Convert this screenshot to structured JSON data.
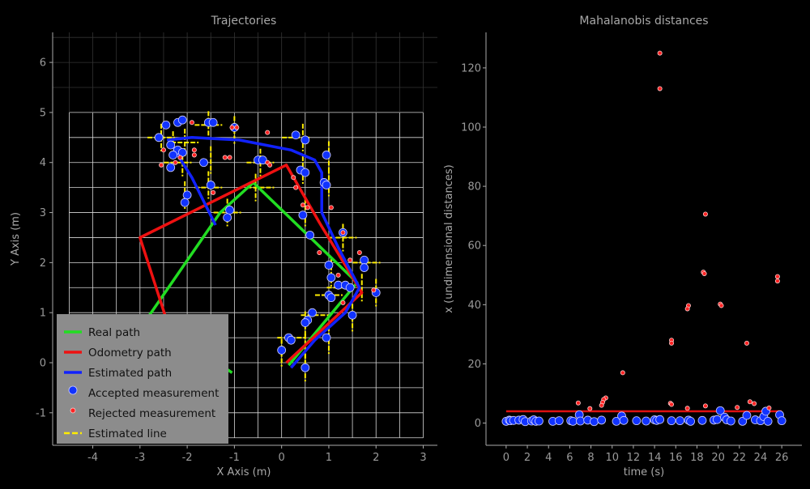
{
  "chart_data": [
    {
      "type": "line",
      "title": "Trajectories",
      "xlabel": "X Axis (m)",
      "ylabel": "Y Axis (m)",
      "xlim": [
        -4.85,
        3.3
      ],
      "ylim": [
        -1.65,
        6.6
      ],
      "xticks": [
        "-4",
        "-3",
        "-2",
        "-1",
        "0",
        "1",
        "2",
        "3"
      ],
      "yticks": [
        "-1",
        "0",
        "1",
        "2",
        "3",
        "4",
        "5",
        "6"
      ],
      "grid": {
        "x_range": [
          -4.5,
          3.0
        ],
        "y_range": [
          -1.5,
          5.0
        ],
        "step": 0.5
      },
      "legend_position": "bottom-left",
      "colors": {
        "real": "#22dd22",
        "odometry": "#ee1111",
        "estimated": "#1122ff",
        "accepted": "#1133ff",
        "rejected": "#ff2222",
        "line": "#ffee00"
      },
      "legend": [
        "Real path",
        "Odometry path",
        "Estimated path",
        "Accepted measurement",
        "Rejected measurement",
        "Estimated line"
      ],
      "series": [
        {
          "name": "Real path",
          "points": [
            [
              -1.05,
              -0.2
            ],
            [
              -2.8,
              0.95
            ],
            [
              -1.3,
              3.0
            ],
            [
              -0.6,
              3.6
            ],
            [
              1.6,
              1.6
            ],
            [
              0.15,
              -0.05
            ]
          ]
        },
        {
          "name": "Odometry path",
          "points": [
            [
              -2.35,
              0.6
            ],
            [
              -3.0,
              2.5
            ],
            [
              0.1,
              3.95
            ],
            [
              0.8,
              2.8
            ],
            [
              1.7,
              1.4
            ],
            [
              0.1,
              0.0
            ]
          ]
        },
        {
          "name": "Estimated path",
          "points": [
            [
              -1.4,
              2.75
            ],
            [
              -1.9,
              3.7
            ],
            [
              -2.4,
              4.45
            ],
            [
              -1.9,
              4.5
            ],
            [
              -0.9,
              4.45
            ],
            [
              0.2,
              4.25
            ],
            [
              0.7,
              4.05
            ],
            [
              0.85,
              3.8
            ],
            [
              0.85,
              3.0
            ],
            [
              1.2,
              2.3
            ],
            [
              1.65,
              1.5
            ],
            [
              1.35,
              1.0
            ],
            [
              0.7,
              0.45
            ],
            [
              0.2,
              -0.1
            ]
          ]
        }
      ],
      "accepted_measurements": [
        [
          -2.6,
          4.5
        ],
        [
          -2.45,
          4.75
        ],
        [
          -2.2,
          4.8
        ],
        [
          -2.1,
          4.85
        ],
        [
          -1.55,
          4.8
        ],
        [
          -1.45,
          4.8
        ],
        [
          -1.0,
          4.7
        ],
        [
          -2.35,
          4.35
        ],
        [
          -2.2,
          4.25
        ],
        [
          -2.1,
          4.2
        ],
        [
          -2.3,
          4.15
        ],
        [
          -1.65,
          4.0
        ],
        [
          -2.35,
          3.9
        ],
        [
          -0.5,
          4.05
        ],
        [
          -0.4,
          4.05
        ],
        [
          0.3,
          4.55
        ],
        [
          0.5,
          4.45
        ],
        [
          0.95,
          4.15
        ],
        [
          0.4,
          3.85
        ],
        [
          0.5,
          3.8
        ],
        [
          0.9,
          3.6
        ],
        [
          0.95,
          3.55
        ],
        [
          -2.0,
          3.35
        ],
        [
          -2.05,
          3.2
        ],
        [
          -1.5,
          3.55
        ],
        [
          -1.1,
          3.05
        ],
        [
          -1.15,
          2.9
        ],
        [
          0.45,
          2.95
        ],
        [
          0.6,
          2.55
        ],
        [
          1.3,
          2.6
        ],
        [
          1.0,
          1.95
        ],
        [
          1.05,
          1.7
        ],
        [
          1.75,
          2.05
        ],
        [
          1.75,
          1.9
        ],
        [
          1.2,
          1.55
        ],
        [
          1.35,
          1.55
        ],
        [
          1.45,
          1.5
        ],
        [
          2.0,
          1.4
        ],
        [
          1.0,
          1.35
        ],
        [
          1.05,
          1.3
        ],
        [
          0.65,
          1.0
        ],
        [
          0.55,
          0.85
        ],
        [
          1.5,
          0.95
        ],
        [
          0.5,
          0.8
        ],
        [
          0.15,
          0.5
        ],
        [
          0.2,
          0.45
        ],
        [
          0.95,
          0.5
        ],
        [
          0.0,
          0.25
        ],
        [
          0.5,
          -0.1
        ]
      ],
      "rejected_measurements": [
        [
          -1.9,
          4.8
        ],
        [
          -1.05,
          4.7
        ],
        [
          -0.95,
          4.7
        ],
        [
          -0.3,
          4.6
        ],
        [
          -2.5,
          4.25
        ],
        [
          -1.85,
          4.25
        ],
        [
          -1.85,
          4.15
        ],
        [
          -2.15,
          4.1
        ],
        [
          -2.25,
          4.0
        ],
        [
          -1.2,
          4.1
        ],
        [
          -1.1,
          4.1
        ],
        [
          -0.3,
          4.0
        ],
        [
          -0.25,
          3.95
        ],
        [
          -2.55,
          3.95
        ],
        [
          -1.45,
          3.4
        ],
        [
          0.25,
          3.7
        ],
        [
          0.3,
          3.5
        ],
        [
          0.45,
          3.15
        ],
        [
          0.55,
          3.1
        ],
        [
          1.05,
          3.1
        ],
        [
          1.3,
          2.6
        ],
        [
          1.65,
          2.2
        ],
        [
          0.8,
          2.2
        ],
        [
          1.45,
          2.05
        ],
        [
          1.95,
          1.45
        ],
        [
          1.2,
          1.75
        ],
        [
          1.3,
          1.2
        ]
      ],
      "estimated_lines": [
        {
          "c": [
            -2.55,
            4.5
          ],
          "d": "h"
        },
        {
          "c": [
            -2.55,
            4.5
          ],
          "d": "v"
        },
        {
          "c": [
            -2.3,
            4.35
          ],
          "d": "v"
        },
        {
          "c": [
            -2.05,
            4.4
          ],
          "d": "h"
        },
        {
          "c": [
            -2.05,
            4.4
          ],
          "d": "v"
        },
        {
          "c": [
            -1.55,
            4.75
          ],
          "d": "v"
        },
        {
          "c": [
            -1.55,
            4.75
          ],
          "d": "h"
        },
        {
          "c": [
            -1.0,
            4.65
          ],
          "d": "v"
        },
        {
          "c": [
            -2.2,
            4.0
          ],
          "d": "h"
        },
        {
          "c": [
            -2.1,
            4.0
          ],
          "d": "v"
        },
        {
          "c": [
            -1.5,
            4.05
          ],
          "d": "v"
        },
        {
          "c": [
            -0.45,
            4.0
          ],
          "d": "h"
        },
        {
          "c": [
            -0.45,
            4.0
          ],
          "d": "v"
        },
        {
          "c": [
            0.3,
            4.5
          ],
          "d": "h"
        },
        {
          "c": [
            0.45,
            4.5
          ],
          "d": "v"
        },
        {
          "c": [
            0.45,
            3.85
          ],
          "d": "v"
        },
        {
          "c": [
            1.0,
            4.15
          ],
          "d": "v"
        },
        {
          "c": [
            1.0,
            3.6
          ],
          "d": "v"
        },
        {
          "c": [
            -2.05,
            3.35
          ],
          "d": "v"
        },
        {
          "c": [
            -1.55,
            3.5
          ],
          "d": "h"
        },
        {
          "c": [
            -1.55,
            3.55
          ],
          "d": "v"
        },
        {
          "c": [
            -0.55,
            3.5
          ],
          "d": "v"
        },
        {
          "c": [
            -0.45,
            3.5
          ],
          "d": "h"
        },
        {
          "c": [
            -1.15,
            3.0
          ],
          "d": "h"
        },
        {
          "c": [
            -1.15,
            3.0
          ],
          "d": "v"
        },
        {
          "c": [
            0.5,
            3.0
          ],
          "d": "v"
        },
        {
          "c": [
            1.3,
            2.5
          ],
          "d": "h"
        },
        {
          "c": [
            1.3,
            2.5
          ],
          "d": "v"
        },
        {
          "c": [
            1.8,
            2.0
          ],
          "d": "h"
        },
        {
          "c": [
            1.05,
            1.8
          ],
          "d": "v"
        },
        {
          "c": [
            1.25,
            1.5
          ],
          "d": "h"
        },
        {
          "c": [
            1.7,
            1.5
          ],
          "d": "v"
        },
        {
          "c": [
            2.0,
            1.4
          ],
          "d": "v"
        },
        {
          "c": [
            1.0,
            1.35
          ],
          "d": "h"
        },
        {
          "c": [
            1.5,
            0.9
          ],
          "d": "v"
        },
        {
          "c": [
            0.7,
            0.95
          ],
          "d": "h"
        },
        {
          "c": [
            0.5,
            0.75
          ],
          "d": "v"
        },
        {
          "c": [
            0.2,
            0.5
          ],
          "d": "h"
        },
        {
          "c": [
            1.0,
            0.45
          ],
          "d": "v"
        },
        {
          "c": [
            0.0,
            0.2
          ],
          "d": "v"
        },
        {
          "c": [
            0.5,
            -0.1
          ],
          "d": "v"
        },
        {
          "c": [
            0.5,
            0.3
          ],
          "d": "v"
        }
      ]
    },
    {
      "type": "scatter",
      "title": "Mahalanobis distances",
      "xlabel": "time (s)",
      "ylabel": "x (undimensional distances)",
      "xlim": [
        -1.9,
        27.9
      ],
      "ylim": [
        -7.5,
        132
      ],
      "xticks": [
        "0",
        "2",
        "4",
        "6",
        "8",
        "10",
        "12",
        "14",
        "16",
        "18",
        "20",
        "22",
        "24",
        "26"
      ],
      "yticks": [
        "0",
        "20",
        "40",
        "60",
        "80",
        "100",
        "120"
      ],
      "threshold": 4,
      "threshold_range": [
        0,
        26
      ],
      "accepted_points": [
        [
          0,
          0.6
        ],
        [
          0.3,
          1.0
        ],
        [
          0.4,
          0.8
        ],
        [
          0.7,
          0.9
        ],
        [
          1.2,
          1.0
        ],
        [
          1.6,
          1.2
        ],
        [
          1.8,
          0.5
        ],
        [
          2.4,
          0.7
        ],
        [
          2.6,
          1.1
        ],
        [
          2.8,
          0.6
        ],
        [
          3.1,
          0.7
        ],
        [
          4.4,
          0.6
        ],
        [
          5.0,
          0.8
        ],
        [
          6.1,
          0.8
        ],
        [
          6.3,
          0.6
        ],
        [
          6.9,
          2.8
        ],
        [
          7.0,
          0.7
        ],
        [
          7.7,
          1.0
        ],
        [
          8.3,
          0.5
        ],
        [
          9.0,
          1.0
        ],
        [
          10.4,
          0.6
        ],
        [
          10.9,
          2.4
        ],
        [
          11.1,
          0.9
        ],
        [
          12.3,
          0.8
        ],
        [
          13.2,
          0.7
        ],
        [
          14.0,
          1.1
        ],
        [
          14.2,
          0.9
        ],
        [
          14.5,
          1.2
        ],
        [
          15.6,
          0.8
        ],
        [
          16.4,
          0.8
        ],
        [
          17.2,
          1.0
        ],
        [
          17.4,
          0.6
        ],
        [
          18.5,
          0.9
        ],
        [
          19.6,
          1.0
        ],
        [
          19.9,
          1.2
        ],
        [
          20.2,
          4.2
        ],
        [
          20.6,
          2.0
        ],
        [
          20.8,
          1.1
        ],
        [
          21.2,
          0.7
        ],
        [
          22.3,
          0.6
        ],
        [
          22.7,
          2.6
        ],
        [
          23.5,
          1.1
        ],
        [
          24.0,
          0.8
        ],
        [
          24.3,
          2.2
        ],
        [
          24.5,
          4.0
        ],
        [
          24.7,
          0.6
        ],
        [
          25.8,
          2.8
        ],
        [
          26.0,
          0.8
        ]
      ],
      "rejected_points": [
        [
          14.5,
          125
        ],
        [
          14.5,
          113
        ],
        [
          18.8,
          70.6
        ],
        [
          18.6,
          51
        ],
        [
          18.7,
          50.5
        ],
        [
          25.6,
          49.5
        ],
        [
          25.6,
          48
        ],
        [
          20.2,
          40.2
        ],
        [
          20.3,
          39.7
        ],
        [
          17.2,
          39.7
        ],
        [
          17.1,
          38.6
        ],
        [
          11.0,
          17.0
        ],
        [
          15.6,
          28
        ],
        [
          15.6,
          27
        ],
        [
          22.7,
          27
        ],
        [
          9.4,
          8.5
        ],
        [
          9.2,
          8.0
        ],
        [
          9.1,
          7.0
        ],
        [
          9.0,
          6.0
        ],
        [
          6.8,
          6.8
        ],
        [
          7.9,
          4.9
        ],
        [
          15.5,
          6.7
        ],
        [
          15.6,
          6.3
        ],
        [
          17.1,
          5.0
        ],
        [
          18.8,
          5.8
        ],
        [
          21.8,
          5.3
        ],
        [
          23.0,
          7.2
        ],
        [
          23.4,
          6.6
        ],
        [
          24.8,
          5.1
        ]
      ]
    }
  ]
}
